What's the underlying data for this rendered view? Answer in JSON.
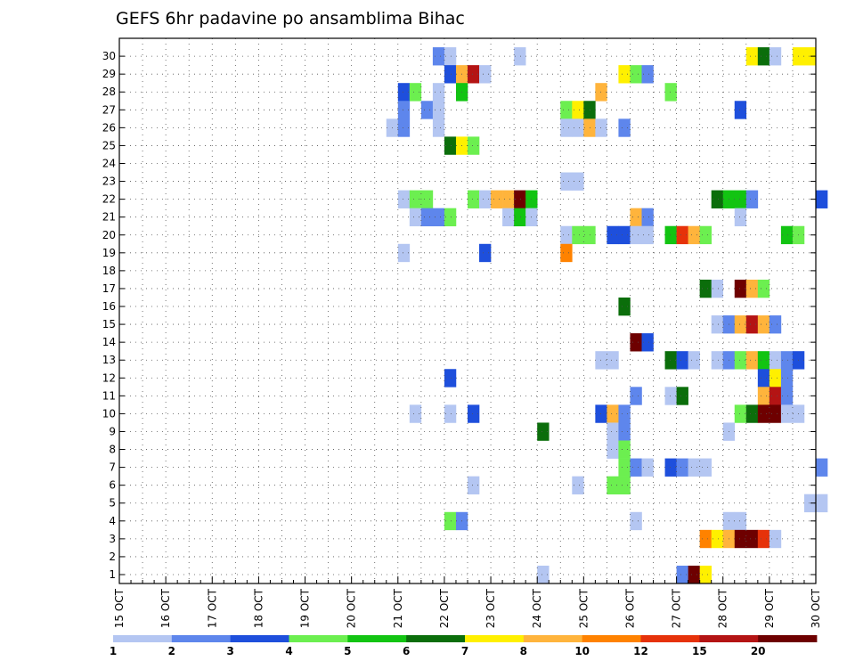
{
  "chart_data": {
    "type": "heatmap",
    "title": "GEFS 6hr padavine po ansamblima Bihac",
    "xlabel": "",
    "ylabel": "",
    "x_ticks": [
      "15 OCT",
      "16 OCT",
      "17 OCT",
      "18 OCT",
      "19 OCT",
      "20 OCT",
      "21 OCT",
      "22 OCT",
      "23 OCT",
      "24 OCT",
      "25 OCT",
      "26 OCT",
      "27 OCT",
      "28 OCT",
      "29 OCT",
      "30 OCT"
    ],
    "x_range": [
      0,
      60
    ],
    "y_range": [
      0,
      30
    ],
    "y_ticks": [
      1,
      2,
      3,
      4,
      5,
      6,
      7,
      8,
      9,
      10,
      11,
      12,
      13,
      14,
      15,
      16,
      17,
      18,
      19,
      20,
      21,
      22,
      23,
      24,
      25,
      26,
      27,
      28,
      29,
      30
    ],
    "grid": true,
    "colorbar": {
      "labels": [
        "1",
        "2",
        "3",
        "4",
        "5",
        "6",
        "7",
        "8",
        "10",
        "12",
        "15",
        "20"
      ],
      "colors": [
        "#b4c6f2",
        "#5e86ec",
        "#1e4fdc",
        "#6cef50",
        "#12c412",
        "#0b6e0b",
        "#fff000",
        "#ffb43c",
        "#ff8200",
        "#e6320a",
        "#b41414",
        "#6e0000"
      ]
    },
    "cells_note": "x = 6-hour step index from 15 OCT 00 UTC, y = ensemble member, c = color class index",
    "cells": [
      {
        "x": 27,
        "y": 30,
        "c": 1
      },
      {
        "x": 28,
        "y": 30,
        "c": 0
      },
      {
        "x": 34,
        "y": 30,
        "c": 0
      },
      {
        "x": 54,
        "y": 30,
        "c": 6
      },
      {
        "x": 55,
        "y": 30,
        "c": 5
      },
      {
        "x": 56,
        "y": 30,
        "c": 0
      },
      {
        "x": 58,
        "y": 30,
        "c": 6
      },
      {
        "x": 59,
        "y": 30,
        "c": 6
      },
      {
        "x": 28,
        "y": 29,
        "c": 2
      },
      {
        "x": 29,
        "y": 29,
        "c": 7
      },
      {
        "x": 30,
        "y": 29,
        "c": 10
      },
      {
        "x": 31,
        "y": 29,
        "c": 0
      },
      {
        "x": 43,
        "y": 29,
        "c": 6
      },
      {
        "x": 44,
        "y": 29,
        "c": 3
      },
      {
        "x": 45,
        "y": 29,
        "c": 1
      },
      {
        "x": 24,
        "y": 28,
        "c": 2
      },
      {
        "x": 25,
        "y": 28,
        "c": 3
      },
      {
        "x": 27,
        "y": 28,
        "c": 0
      },
      {
        "x": 29,
        "y": 28,
        "c": 4
      },
      {
        "x": 41,
        "y": 28,
        "c": 7
      },
      {
        "x": 47,
        "y": 28,
        "c": 3
      },
      {
        "x": 24,
        "y": 27,
        "c": 1
      },
      {
        "x": 26,
        "y": 27,
        "c": 1
      },
      {
        "x": 27,
        "y": 27,
        "c": 0
      },
      {
        "x": 38,
        "y": 27,
        "c": 3
      },
      {
        "x": 39,
        "y": 27,
        "c": 6
      },
      {
        "x": 40,
        "y": 27,
        "c": 5
      },
      {
        "x": 53,
        "y": 27,
        "c": 2
      },
      {
        "x": 23,
        "y": 26,
        "c": 0
      },
      {
        "x": 24,
        "y": 26,
        "c": 1
      },
      {
        "x": 27,
        "y": 26,
        "c": 0
      },
      {
        "x": 38,
        "y": 26,
        "c": 0
      },
      {
        "x": 39,
        "y": 26,
        "c": 0
      },
      {
        "x": 40,
        "y": 26,
        "c": 7
      },
      {
        "x": 41,
        "y": 26,
        "c": 0
      },
      {
        "x": 43,
        "y": 26,
        "c": 1
      },
      {
        "x": 28,
        "y": 25,
        "c": 5
      },
      {
        "x": 29,
        "y": 25,
        "c": 6
      },
      {
        "x": 30,
        "y": 25,
        "c": 3
      },
      {
        "x": 38,
        "y": 23,
        "c": 0
      },
      {
        "x": 39,
        "y": 23,
        "c": 0
      },
      {
        "x": 24,
        "y": 22,
        "c": 0
      },
      {
        "x": 25,
        "y": 22,
        "c": 3
      },
      {
        "x": 26,
        "y": 22,
        "c": 3
      },
      {
        "x": 30,
        "y": 22,
        "c": 3
      },
      {
        "x": 31,
        "y": 22,
        "c": 0
      },
      {
        "x": 32,
        "y": 22,
        "c": 7
      },
      {
        "x": 33,
        "y": 22,
        "c": 7
      },
      {
        "x": 34,
        "y": 22,
        "c": 11
      },
      {
        "x": 35,
        "y": 22,
        "c": 4
      },
      {
        "x": 51,
        "y": 22,
        "c": 5
      },
      {
        "x": 52,
        "y": 22,
        "c": 4
      },
      {
        "x": 53,
        "y": 22,
        "c": 4
      },
      {
        "x": 54,
        "y": 22,
        "c": 1
      },
      {
        "x": 60,
        "y": 22,
        "c": 2
      },
      {
        "x": 25,
        "y": 21,
        "c": 0
      },
      {
        "x": 26,
        "y": 21,
        "c": 1
      },
      {
        "x": 27,
        "y": 21,
        "c": 1
      },
      {
        "x": 28,
        "y": 21,
        "c": 3
      },
      {
        "x": 33,
        "y": 21,
        "c": 0
      },
      {
        "x": 34,
        "y": 21,
        "c": 4
      },
      {
        "x": 35,
        "y": 21,
        "c": 0
      },
      {
        "x": 44,
        "y": 21,
        "c": 7
      },
      {
        "x": 45,
        "y": 21,
        "c": 1
      },
      {
        "x": 53,
        "y": 21,
        "c": 0
      },
      {
        "x": 38,
        "y": 20,
        "c": 0
      },
      {
        "x": 39,
        "y": 20,
        "c": 3
      },
      {
        "x": 40,
        "y": 20,
        "c": 3
      },
      {
        "x": 42,
        "y": 20,
        "c": 2
      },
      {
        "x": 43,
        "y": 20,
        "c": 2
      },
      {
        "x": 44,
        "y": 20,
        "c": 0
      },
      {
        "x": 45,
        "y": 20,
        "c": 0
      },
      {
        "x": 47,
        "y": 20,
        "c": 4
      },
      {
        "x": 48,
        "y": 20,
        "c": 9
      },
      {
        "x": 49,
        "y": 20,
        "c": 7
      },
      {
        "x": 50,
        "y": 20,
        "c": 3
      },
      {
        "x": 57,
        "y": 20,
        "c": 4
      },
      {
        "x": 58,
        "y": 20,
        "c": 3
      },
      {
        "x": 24,
        "y": 19,
        "c": 0
      },
      {
        "x": 31,
        "y": 19,
        "c": 2
      },
      {
        "x": 38,
        "y": 19,
        "c": 8
      },
      {
        "x": 50,
        "y": 17,
        "c": 5
      },
      {
        "x": 51,
        "y": 17,
        "c": 0
      },
      {
        "x": 53,
        "y": 17,
        "c": 11
      },
      {
        "x": 54,
        "y": 17,
        "c": 7
      },
      {
        "x": 55,
        "y": 17,
        "c": 3
      },
      {
        "x": 43,
        "y": 16,
        "c": 5
      },
      {
        "x": 51,
        "y": 15,
        "c": 0
      },
      {
        "x": 52,
        "y": 15,
        "c": 1
      },
      {
        "x": 53,
        "y": 15,
        "c": 7
      },
      {
        "x": 54,
        "y": 15,
        "c": 10
      },
      {
        "x": 55,
        "y": 15,
        "c": 7
      },
      {
        "x": 56,
        "y": 15,
        "c": 1
      },
      {
        "x": 44,
        "y": 14,
        "c": 11
      },
      {
        "x": 45,
        "y": 14,
        "c": 2
      },
      {
        "x": 41,
        "y": 13,
        "c": 0
      },
      {
        "x": 42,
        "y": 13,
        "c": 0
      },
      {
        "x": 47,
        "y": 13,
        "c": 5
      },
      {
        "x": 48,
        "y": 13,
        "c": 2
      },
      {
        "x": 49,
        "y": 13,
        "c": 0
      },
      {
        "x": 51,
        "y": 13,
        "c": 0
      },
      {
        "x": 52,
        "y": 13,
        "c": 1
      },
      {
        "x": 53,
        "y": 13,
        "c": 3
      },
      {
        "x": 54,
        "y": 13,
        "c": 7
      },
      {
        "x": 55,
        "y": 13,
        "c": 4
      },
      {
        "x": 56,
        "y": 13,
        "c": 0
      },
      {
        "x": 57,
        "y": 13,
        "c": 1
      },
      {
        "x": 58,
        "y": 13,
        "c": 2
      },
      {
        "x": 28,
        "y": 12,
        "c": 2
      },
      {
        "x": 55,
        "y": 12,
        "c": 2
      },
      {
        "x": 56,
        "y": 12,
        "c": 6
      },
      {
        "x": 57,
        "y": 12,
        "c": 1
      },
      {
        "x": 44,
        "y": 11,
        "c": 1
      },
      {
        "x": 47,
        "y": 11,
        "c": 0
      },
      {
        "x": 48,
        "y": 11,
        "c": 5
      },
      {
        "x": 55,
        "y": 11,
        "c": 7
      },
      {
        "x": 56,
        "y": 11,
        "c": 10
      },
      {
        "x": 57,
        "y": 11,
        "c": 1
      },
      {
        "x": 25,
        "y": 10,
        "c": 0
      },
      {
        "x": 28,
        "y": 10,
        "c": 0
      },
      {
        "x": 30,
        "y": 10,
        "c": 2
      },
      {
        "x": 41,
        "y": 10,
        "c": 2
      },
      {
        "x": 42,
        "y": 10,
        "c": 7
      },
      {
        "x": 43,
        "y": 10,
        "c": 1
      },
      {
        "x": 53,
        "y": 10,
        "c": 3
      },
      {
        "x": 54,
        "y": 10,
        "c": 5
      },
      {
        "x": 55,
        "y": 10,
        "c": 11
      },
      {
        "x": 56,
        "y": 10,
        "c": 11
      },
      {
        "x": 57,
        "y": 10,
        "c": 0
      },
      {
        "x": 58,
        "y": 10,
        "c": 0
      },
      {
        "x": 36,
        "y": 9,
        "c": 5
      },
      {
        "x": 42,
        "y": 9,
        "c": 0
      },
      {
        "x": 43,
        "y": 9,
        "c": 1
      },
      {
        "x": 52,
        "y": 9,
        "c": 0
      },
      {
        "x": 42,
        "y": 8,
        "c": 0
      },
      {
        "x": 43,
        "y": 8,
        "c": 3
      },
      {
        "x": 43,
        "y": 7,
        "c": 3
      },
      {
        "x": 44,
        "y": 7,
        "c": 1
      },
      {
        "x": 45,
        "y": 7,
        "c": 0
      },
      {
        "x": 47,
        "y": 7,
        "c": 2
      },
      {
        "x": 48,
        "y": 7,
        "c": 1
      },
      {
        "x": 49,
        "y": 7,
        "c": 0
      },
      {
        "x": 50,
        "y": 7,
        "c": 0
      },
      {
        "x": 60,
        "y": 7,
        "c": 1
      },
      {
        "x": 30,
        "y": 6,
        "c": 0
      },
      {
        "x": 39,
        "y": 6,
        "c": 0
      },
      {
        "x": 42,
        "y": 6,
        "c": 3
      },
      {
        "x": 43,
        "y": 6,
        "c": 3
      },
      {
        "x": 59,
        "y": 5,
        "c": 0
      },
      {
        "x": 60,
        "y": 5,
        "c": 0
      },
      {
        "x": 28,
        "y": 4,
        "c": 3
      },
      {
        "x": 29,
        "y": 4,
        "c": 1
      },
      {
        "x": 44,
        "y": 4,
        "c": 0
      },
      {
        "x": 52,
        "y": 4,
        "c": 0
      },
      {
        "x": 53,
        "y": 4,
        "c": 0
      },
      {
        "x": 50,
        "y": 3,
        "c": 8
      },
      {
        "x": 51,
        "y": 3,
        "c": 6
      },
      {
        "x": 52,
        "y": 3,
        "c": 7
      },
      {
        "x": 53,
        "y": 3,
        "c": 11
      },
      {
        "x": 54,
        "y": 3,
        "c": 11
      },
      {
        "x": 55,
        "y": 3,
        "c": 9
      },
      {
        "x": 56,
        "y": 3,
        "c": 0
      },
      {
        "x": 36,
        "y": 1,
        "c": 0
      },
      {
        "x": 48,
        "y": 1,
        "c": 1
      },
      {
        "x": 49,
        "y": 1,
        "c": 11
      },
      {
        "x": 50,
        "y": 1,
        "c": 6
      }
    ]
  }
}
